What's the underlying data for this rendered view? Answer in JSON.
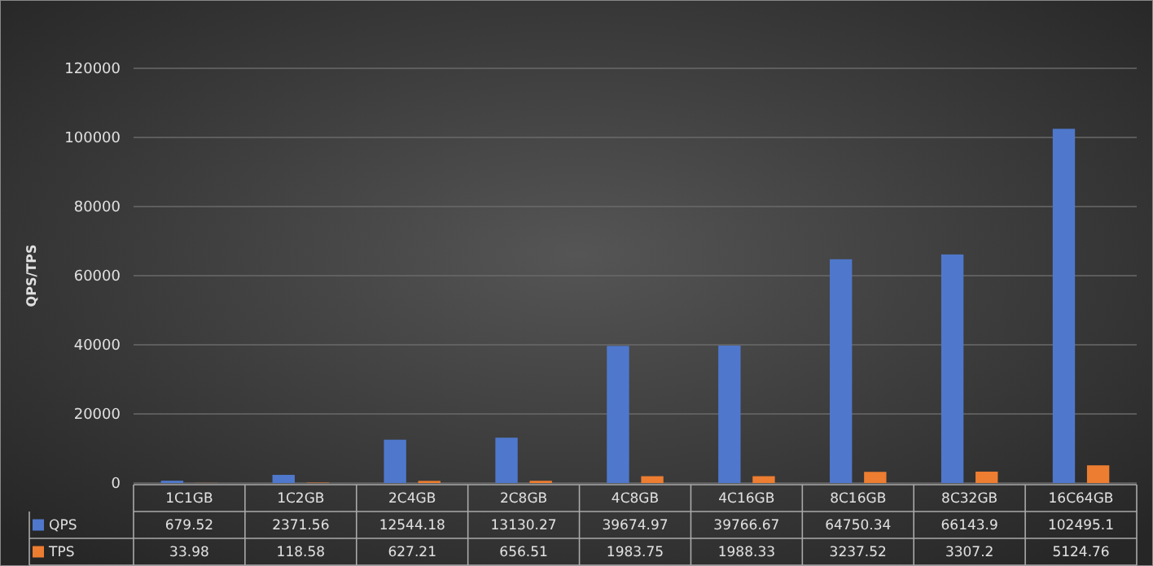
{
  "chart_data": {
    "type": "bar",
    "ylabel": "QPS/TPS",
    "categories": [
      "1C1GB",
      "1C2GB",
      "2C4GB",
      "2C8GB",
      "4C8GB",
      "4C16GB",
      "8C16GB",
      "8C32GB",
      "16C64GB"
    ],
    "series": [
      {
        "name": "QPS",
        "color": "#4f78cc",
        "values": [
          679.52,
          2371.56,
          12544.18,
          13130.27,
          39674.97,
          39766.67,
          64750.34,
          66143.9,
          102495.1
        ]
      },
      {
        "name": "TPS",
        "color": "#ed7d31",
        "values": [
          33.98,
          118.58,
          627.21,
          656.51,
          1983.75,
          1988.33,
          3237.52,
          3307.2,
          5124.76
        ]
      }
    ],
    "ylim": [
      0,
      120000
    ],
    "yticks": [
      0,
      20000,
      40000,
      60000,
      80000,
      100000,
      120000
    ],
    "grid": "y",
    "legend": "bottom",
    "data_labels": true
  }
}
